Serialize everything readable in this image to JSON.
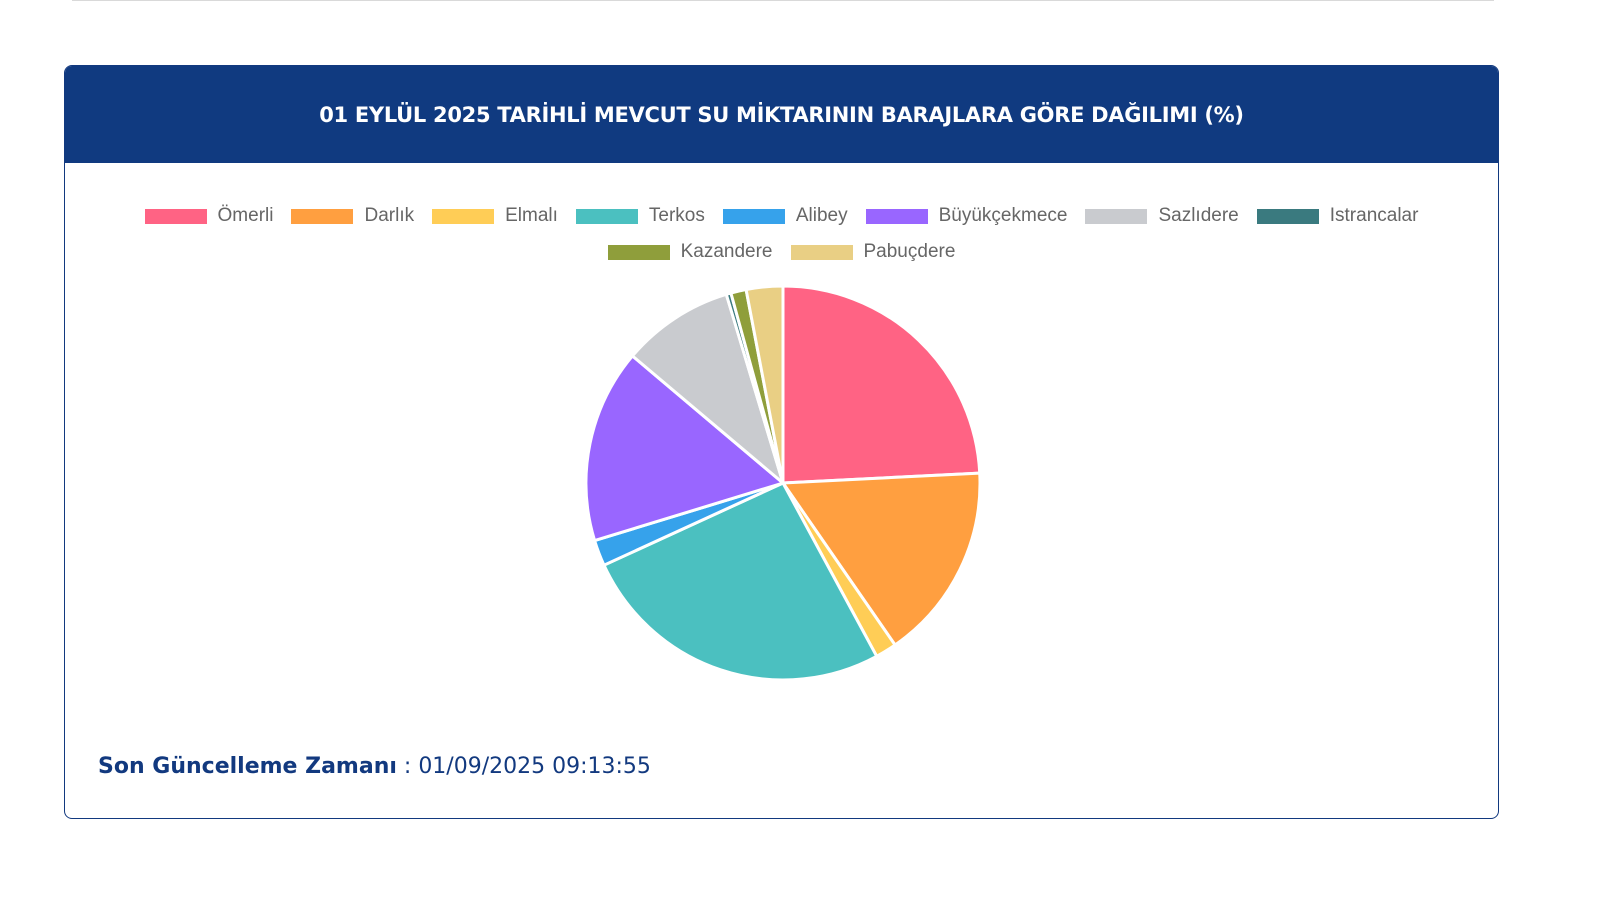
{
  "card": {
    "title": "01 EYLÜL 2025 TARİHLİ MEVCUT SU MİKTARININ BARAJLARA GÖRE DAĞILIMI (%)"
  },
  "footer": {
    "label": "Son Güncelleme Zamanı",
    "separator": " : ",
    "value": "01/09/2025 09:13:55"
  },
  "chart_data": {
    "type": "pie",
    "categories": [
      "Ömerli",
      "Darlık",
      "Elmalı",
      "Terkos",
      "Alibey",
      "Büyükçekmece",
      "Sazlıdere",
      "Istrancalar",
      "Kazandere",
      "Pabuçdere"
    ],
    "values": [
      25.0,
      16.7,
      1.8,
      26.9,
      2.2,
      16.4,
      9.5,
      0.4,
      1.3,
      3.1
    ],
    "colors": [
      "#ff6384",
      "#ff9f40",
      "#ffcd56",
      "#4bc0c0",
      "#36a2eb",
      "#9966ff",
      "#c9cbcf",
      "#3a7a7f",
      "#8f9e3b",
      "#e9cf84"
    ],
    "unit": "%",
    "legend_position": "top"
  }
}
